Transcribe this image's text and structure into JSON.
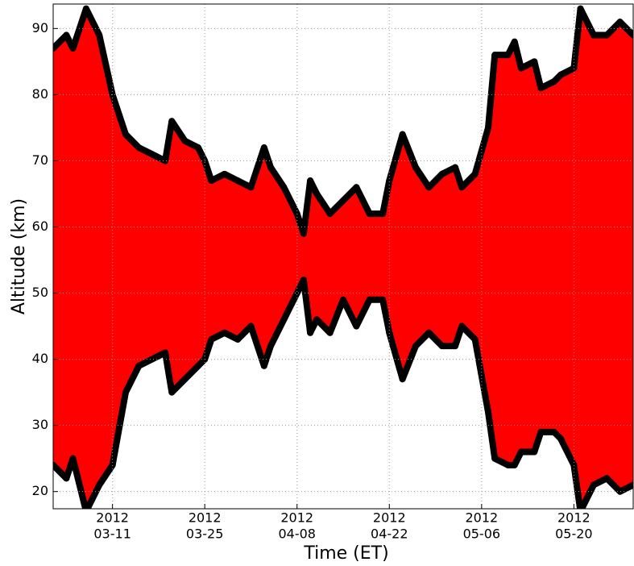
{
  "chart_data": {
    "type": "area",
    "x": [
      "2012-03-02",
      "2012-03-04",
      "2012-03-05",
      "2012-03-07",
      "2012-03-09",
      "2012-03-11",
      "2012-03-13",
      "2012-03-15",
      "2012-03-17",
      "2012-03-19",
      "2012-03-20",
      "2012-03-22",
      "2012-03-24",
      "2012-03-25",
      "2012-03-26",
      "2012-03-28",
      "2012-03-30",
      "2012-04-01",
      "2012-04-03",
      "2012-04-04",
      "2012-04-06",
      "2012-04-08",
      "2012-04-09",
      "2012-04-10",
      "2012-04-11",
      "2012-04-13",
      "2012-04-15",
      "2012-04-17",
      "2012-04-19",
      "2012-04-21",
      "2012-04-22",
      "2012-04-24",
      "2012-04-26",
      "2012-04-28",
      "2012-04-30",
      "2012-05-02",
      "2012-05-03",
      "2012-05-05",
      "2012-05-07",
      "2012-05-08",
      "2012-05-10",
      "2012-05-11",
      "2012-05-12",
      "2012-05-14",
      "2012-05-15",
      "2012-05-17",
      "2012-05-18",
      "2012-05-20",
      "2012-05-21",
      "2012-05-23",
      "2012-05-25",
      "2012-05-27",
      "2012-05-29"
    ],
    "series": [
      {
        "color": "#000000",
        "values": [
          87,
          89,
          87,
          93,
          89,
          80,
          74,
          72,
          71,
          70,
          76,
          73,
          72,
          70,
          67,
          68,
          67,
          66,
          72,
          69,
          66,
          62,
          59,
          67,
          65,
          62,
          64,
          66,
          62,
          62,
          67,
          74,
          69,
          66,
          68,
          69,
          66,
          68,
          75,
          86,
          86,
          88,
          84,
          85,
          81,
          82,
          83,
          84,
          93,
          89,
          89,
          91,
          89
        ]
      },
      {
        "color": "#000000",
        "values": [
          24,
          22,
          25,
          17,
          21,
          24,
          35,
          39,
          40,
          41,
          35,
          37,
          39,
          40,
          43,
          44,
          43,
          45,
          39,
          42,
          46,
          50,
          52,
          44,
          46,
          44,
          49,
          45,
          49,
          49,
          44,
          37,
          42,
          44,
          42,
          42,
          45,
          43,
          32,
          25,
          24,
          24,
          26,
          26,
          29,
          29,
          28,
          24,
          17,
          21,
          22,
          20,
          21
        ]
      }
    ],
    "fill": "#ff0000",
    "xlabel": "Time (ET)",
    "ylabel": "Altitude (km)",
    "xlim": [
      "2012-03-02",
      "2012-05-29"
    ],
    "xticks": [
      {
        "value": "2012-03-11",
        "label": [
          "2012",
          "03-11"
        ]
      },
      {
        "value": "2012-03-25",
        "label": [
          "2012",
          "03-25"
        ]
      },
      {
        "value": "2012-04-08",
        "label": [
          "2012",
          "04-08"
        ]
      },
      {
        "value": "2012-04-22",
        "label": [
          "2012",
          "04-22"
        ]
      },
      {
        "value": "2012-05-06",
        "label": [
          "2012",
          "05-06"
        ]
      },
      {
        "value": "2012-05-20",
        "label": [
          "2012",
          "05-20"
        ]
      }
    ],
    "ylim": [
      17.4,
      93.7
    ],
    "yticks": [
      20,
      30,
      40,
      50,
      60,
      70,
      80,
      90
    ],
    "grid": true
  }
}
